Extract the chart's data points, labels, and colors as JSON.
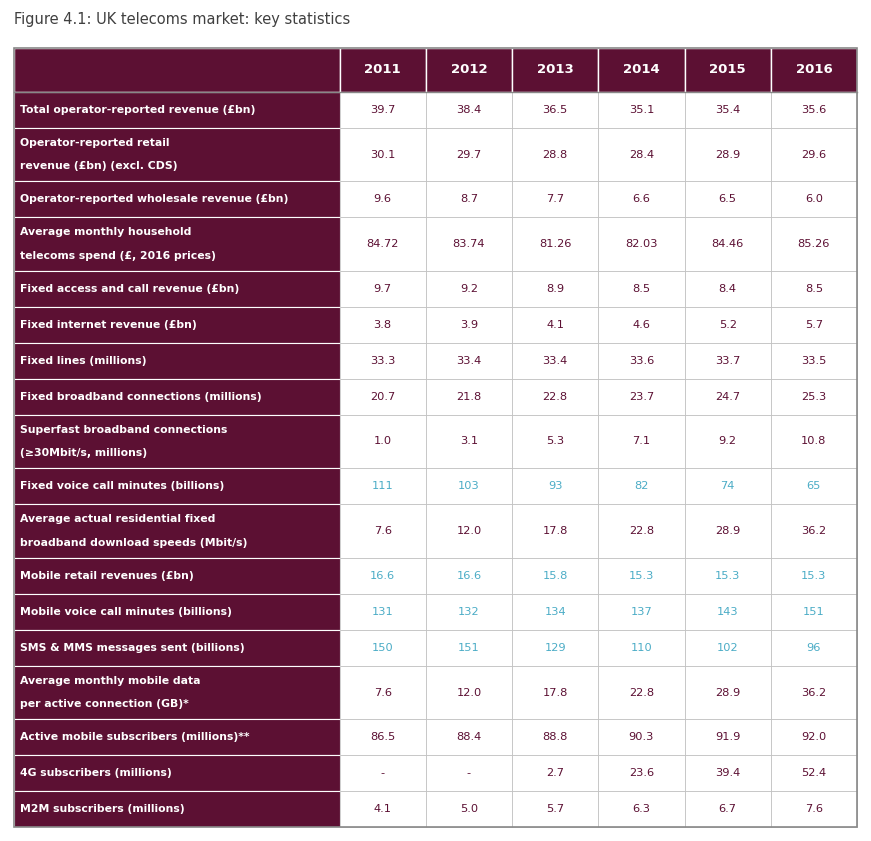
{
  "title": "Figure 4.1: UK telecoms market: key statistics",
  "columns": [
    "",
    "2011",
    "2012",
    "2013",
    "2014",
    "2015",
    "2016"
  ],
  "rows": [
    {
      "label_lines": [
        "Total operator-reported revenue (£bn)"
      ],
      "values": [
        "39.7",
        "38.4",
        "36.5",
        "35.1",
        "35.4",
        "35.6"
      ],
      "value_color": "dark",
      "single_line": true
    },
    {
      "label_lines": [
        "Operator-reported retail",
        "revenue (£bn) (excl. CDS)"
      ],
      "values": [
        "30.1",
        "29.7",
        "28.8",
        "28.4",
        "28.9",
        "29.6"
      ],
      "value_color": "dark",
      "single_line": false
    },
    {
      "label_lines": [
        "Operator-reported wholesale revenue (£bn)"
      ],
      "values": [
        "9.6",
        "8.7",
        "7.7",
        "6.6",
        "6.5",
        "6.0"
      ],
      "value_color": "dark",
      "single_line": true
    },
    {
      "label_lines": [
        "Average monthly household",
        "telecoms spend (£, 2016 prices)"
      ],
      "values": [
        "84.72",
        "83.74",
        "81.26",
        "82.03",
        "84.46",
        "85.26"
      ],
      "value_color": "dark",
      "single_line": false
    },
    {
      "label_lines": [
        "Fixed access and call revenue (£bn)"
      ],
      "values": [
        "9.7",
        "9.2",
        "8.9",
        "8.5",
        "8.4",
        "8.5"
      ],
      "value_color": "dark",
      "single_line": true
    },
    {
      "label_lines": [
        "Fixed internet revenue (£bn)"
      ],
      "values": [
        "3.8",
        "3.9",
        "4.1",
        "4.6",
        "5.2",
        "5.7"
      ],
      "value_color": "dark",
      "single_line": true
    },
    {
      "label_lines": [
        "Fixed lines (millions)"
      ],
      "values": [
        "33.3",
        "33.4",
        "33.4",
        "33.6",
        "33.7",
        "33.5"
      ],
      "value_color": "dark",
      "single_line": true
    },
    {
      "label_lines": [
        "Fixed broadband connections (millions)"
      ],
      "values": [
        "20.7",
        "21.8",
        "22.8",
        "23.7",
        "24.7",
        "25.3"
      ],
      "value_color": "dark",
      "single_line": true
    },
    {
      "label_lines": [
        "Superfast broadband connections",
        "(≥30Mbit/s, millions)"
      ],
      "values": [
        "1.0",
        "3.1",
        "5.3",
        "7.1",
        "9.2",
        "10.8"
      ],
      "value_color": "dark",
      "single_line": false
    },
    {
      "label_lines": [
        "Fixed voice call minutes (billions)"
      ],
      "values": [
        "111",
        "103",
        "93",
        "82",
        "74",
        "65"
      ],
      "value_color": "teal",
      "single_line": true
    },
    {
      "label_lines": [
        "Average actual residential fixed",
        "broadband download speeds (Mbit/s)"
      ],
      "values": [
        "7.6",
        "12.0",
        "17.8",
        "22.8",
        "28.9",
        "36.2"
      ],
      "value_color": "dark",
      "single_line": false
    },
    {
      "label_lines": [
        "Mobile retail revenues (£bn)"
      ],
      "values": [
        "16.6",
        "16.6",
        "15.8",
        "15.3",
        "15.3",
        "15.3"
      ],
      "value_color": "teal",
      "single_line": true
    },
    {
      "label_lines": [
        "Mobile voice call minutes (billions)"
      ],
      "values": [
        "131",
        "132",
        "134",
        "137",
        "143",
        "151"
      ],
      "value_color": "teal",
      "single_line": true
    },
    {
      "label_lines": [
        "SMS & MMS messages sent (billions)"
      ],
      "values": [
        "150",
        "151",
        "129",
        "110",
        "102",
        "96"
      ],
      "value_color": "teal",
      "single_line": true
    },
    {
      "label_lines": [
        "Average monthly mobile data",
        "per active connection (GB)*"
      ],
      "values": [
        "7.6",
        "12.0",
        "17.8",
        "22.8",
        "28.9",
        "36.2"
      ],
      "value_color": "dark",
      "single_line": false
    },
    {
      "label_lines": [
        "Active mobile subscribers (millions)**"
      ],
      "values": [
        "86.5",
        "88.4",
        "88.8",
        "90.3",
        "91.9",
        "92.0"
      ],
      "value_color": "dark",
      "single_line": true
    },
    {
      "label_lines": [
        "4G subscribers (millions)"
      ],
      "values": [
        "-",
        "-",
        "2.7",
        "23.6",
        "39.4",
        "52.4"
      ],
      "value_color": "dark",
      "single_line": true
    },
    {
      "label_lines": [
        "M2M subscribers (millions)"
      ],
      "values": [
        "4.1",
        "5.0",
        "5.7",
        "6.3",
        "6.7",
        "7.6"
      ],
      "value_color": "dark",
      "single_line": true
    }
  ],
  "header_bg": "#5C1033",
  "row_label_bg": "#5C1033",
  "header_text_color": "#FFFFFF",
  "row_label_text_color": "#FFFFFF",
  "data_bg_color": "#FFFFFF",
  "data_text_dark": "#5C1033",
  "data_text_teal": "#4BACC6",
  "grid_color": "#BBBBBB",
  "title_color": "#404040",
  "title_fontsize": 10.5,
  "label_fontsize": 7.8,
  "header_fontsize": 9.5,
  "value_fontsize": 8.2
}
